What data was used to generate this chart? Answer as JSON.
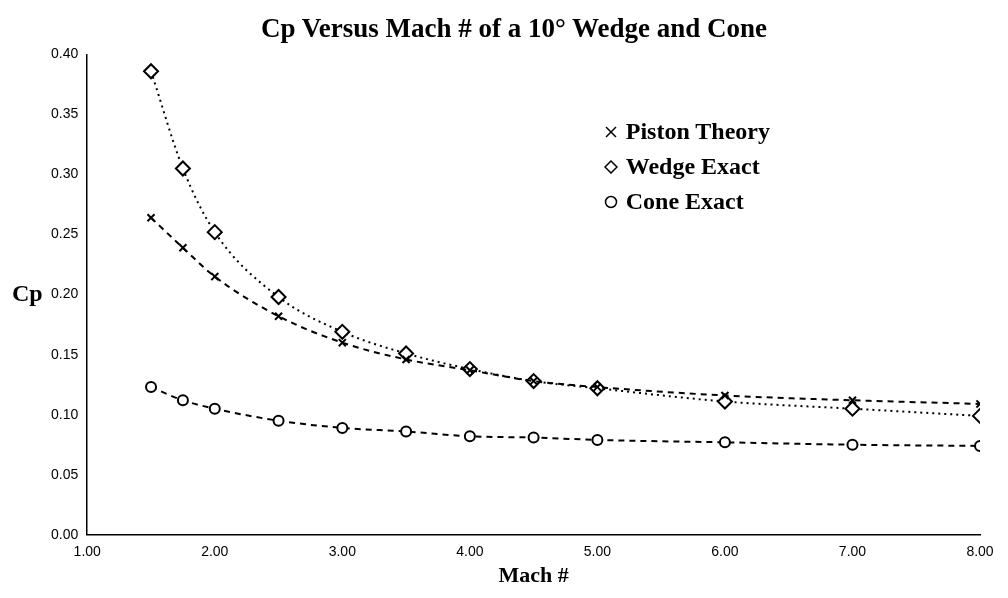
{
  "chart_data": {
    "type": "line",
    "title": "Cp Versus Mach # of a 10° Wedge and Cone",
    "xlabel": "Mach #",
    "ylabel": "Cp",
    "x": [
      1.5,
      1.75,
      2,
      2.5,
      3,
      3.5,
      4,
      4.5,
      5,
      6,
      7,
      8
    ],
    "series": [
      {
        "name": "Piston Theory",
        "color": "#000000",
        "marker": "cross",
        "line_style": "dashed",
        "values": [
          0.264,
          0.239,
          0.215,
          0.182,
          0.16,
          0.146,
          0.137,
          0.128,
          0.123,
          0.116,
          0.112,
          0.109
        ]
      },
      {
        "name": "Wedge Exact",
        "color": "#000000",
        "marker": "diamond",
        "line_style": "dotted",
        "values": [
          0.386,
          0.305,
          0.252,
          0.198,
          0.169,
          0.151,
          0.138,
          0.128,
          0.122,
          0.111,
          0.105,
          0.099
        ]
      },
      {
        "name": "Cone Exact",
        "color": "#000000",
        "marker": "circle",
        "line_style": "dashed",
        "values": [
          0.123,
          0.112,
          0.105,
          0.095,
          0.089,
          0.086,
          0.082,
          0.081,
          0.079,
          0.077,
          0.075,
          0.074
        ]
      }
    ],
    "xlim": [
      1,
      8
    ],
    "xticks": [
      {
        "value": 1,
        "label": "1.00"
      },
      {
        "value": 2,
        "label": "2.00"
      },
      {
        "value": 3,
        "label": "3.00"
      },
      {
        "value": 4,
        "label": "4.00"
      },
      {
        "value": 5,
        "label": "5.00"
      },
      {
        "value": 6,
        "label": "6.00"
      },
      {
        "value": 7,
        "label": "7.00"
      },
      {
        "value": 8,
        "label": "8.00"
      }
    ],
    "ylim": [
      0,
      0.4
    ],
    "yticks": [
      {
        "value": 0,
        "label": "0.00"
      },
      {
        "value": 0.05,
        "label": "0.05"
      },
      {
        "value": 0.1,
        "label": "0.10"
      },
      {
        "value": 0.15,
        "label": "0.15"
      },
      {
        "value": 0.2,
        "label": "0.20"
      },
      {
        "value": 0.25,
        "label": "0.25"
      },
      {
        "value": 0.3,
        "label": "0.30"
      },
      {
        "value": 0.35,
        "label": "0.35"
      },
      {
        "value": 0.4,
        "label": "0.40"
      }
    ],
    "grid": false,
    "legend": "top right"
  }
}
